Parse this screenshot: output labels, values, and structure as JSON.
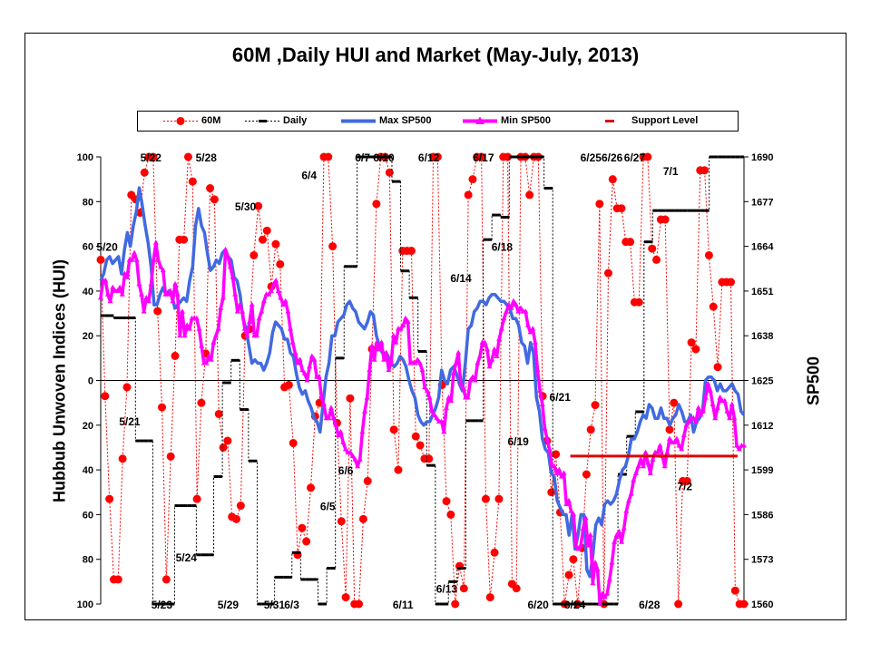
{
  "chart_data": {
    "type": "line",
    "title": "60M ,Daily HUI and Market (May-July, 2013)",
    "ylabel_left": "Hubbub Unwoven Indices (HUI)",
    "ylabel_right": "SP500",
    "y_left_ticks": [
      "100",
      "80",
      "60",
      "40",
      "20",
      "0",
      "20",
      "40",
      "60",
      "80",
      "100"
    ],
    "y_left_range": [
      -100,
      100
    ],
    "y_right_ticks": [
      1690,
      1677,
      1664,
      1651,
      1638,
      1625,
      1612,
      1599,
      1586,
      1573,
      1560
    ],
    "y_right_range": [
      1560,
      1690
    ],
    "legend_position": "top",
    "legend": [
      "60M",
      "Daily",
      "Max SP500",
      "Min SP500",
      "Support Level"
    ],
    "colors": {
      "m60": "#ff0000",
      "daily": "#000000",
      "max": "#4169e1",
      "min": "#ff00ff",
      "support": "#dd0000"
    },
    "series_60m": [
      54,
      -7,
      -53,
      -89,
      -89,
      -35,
      -3,
      83,
      81,
      75,
      93,
      100,
      100,
      31,
      -12,
      -89,
      -34,
      11,
      63,
      63,
      100,
      89,
      -53,
      -10,
      12,
      86,
      81,
      -15,
      -30,
      -27,
      -61,
      -62,
      -56,
      20,
      23,
      56,
      78,
      63,
      67,
      42,
      61,
      52,
      -3,
      -2,
      -28,
      -78,
      -66,
      -72,
      -48,
      -16,
      -10,
      100,
      100,
      60,
      -19,
      -63,
      -97,
      -8,
      -100,
      -100,
      -62,
      -45,
      14,
      79,
      100,
      100,
      93,
      -22,
      -40,
      58,
      58,
      58,
      -25,
      -29,
      -35,
      -35,
      100,
      100,
      -2,
      -54,
      -60,
      -100,
      -83,
      -93,
      83,
      90,
      100,
      100,
      -53,
      -97,
      -77,
      -53,
      100,
      100,
      -91,
      -93,
      100,
      100,
      83,
      100,
      100,
      -7,
      -27,
      -50,
      -33,
      -59,
      -100,
      -87,
      -80,
      -100,
      -75,
      -42,
      -22,
      -11,
      79,
      -100,
      48,
      90,
      77,
      77,
      62,
      62,
      35,
      35,
      100,
      100,
      59,
      54,
      72,
      72,
      -22,
      -10,
      -100,
      -45,
      -45,
      17,
      14,
      94,
      94,
      56,
      33,
      6,
      44,
      44,
      44,
      -94,
      -100,
      -100
    ],
    "series_daily": [
      29,
      29,
      29,
      28,
      28,
      28,
      28,
      28,
      -27,
      -27,
      -27,
      -27,
      -100,
      -100,
      -100,
      -100,
      -100,
      -56,
      -56,
      -56,
      -56,
      -56,
      -78,
      -78,
      -78,
      -78,
      -43,
      -43,
      -1,
      -1,
      9,
      9,
      -13,
      -13,
      -36,
      -36,
      -100,
      -100,
      -100,
      -100,
      -88,
      -88,
      -88,
      -88,
      -77,
      -77,
      -89,
      -89,
      -89,
      -89,
      -100,
      -100,
      -84,
      -84,
      10,
      10,
      51,
      51,
      51,
      100,
      100,
      100,
      100,
      100,
      100,
      100,
      100,
      89,
      89,
      49,
      49,
      37,
      37,
      13,
      13,
      -38,
      -38,
      -100,
      -100,
      -100,
      -90,
      -90,
      -84,
      -84,
      -18,
      -18,
      -18,
      -18,
      63,
      63,
      74,
      74,
      73,
      73,
      100,
      100,
      100,
      100,
      100,
      100,
      100,
      100,
      86,
      86,
      -100,
      -100,
      -100,
      -100,
      -100,
      -100,
      -100,
      -100,
      -100,
      -100,
      -100,
      -100,
      -100,
      -100,
      -100,
      -42,
      -42,
      -25,
      -25,
      -14,
      -14,
      62,
      62,
      76,
      76,
      76,
      76,
      76,
      76,
      76,
      76,
      76,
      76,
      76,
      76,
      76,
      100,
      100,
      100,
      100,
      100,
      100,
      100,
      100,
      100
    ],
    "series_max_sp500": [
      1654,
      1656,
      1660,
      1661,
      1659,
      1660,
      1661,
      1656,
      1663,
      1668,
      1664,
      1670,
      1674,
      1681,
      1676,
      1670,
      1665,
      1658,
      1647,
      1647,
      1650,
      1652,
      1650,
      1651,
      1650,
      1646,
      1647,
      1648,
      1649,
      1648,
      1654,
      1658,
      1670,
      1675,
      1670,
      1668,
      1662,
      1657,
      1658,
      1660,
      1659,
      1662,
      1663,
      1661,
      1660,
      1655,
      1654,
      1650,
      1643,
      1640,
      1635,
      1630,
      1631,
      1630,
      1630,
      1628,
      1630,
      1633,
      1639,
      1642,
      1641,
      1640,
      1637,
      1637,
      1633,
      1632,
      1627,
      1623,
      1621,
      1622,
      1619,
      1617,
      1614,
      1613,
      1610,
      1618,
      1626,
      1630,
      1638,
      1638,
      1642,
      1643,
      1644,
      1647,
      1648,
      1646,
      1645,
      1642,
      1641,
      1640,
      1642,
      1645,
      1644,
      1638,
      1635,
      1633,
      1633,
      1632,
      1630,
      1629,
      1630,
      1632,
      1631,
      1629,
      1625,
      1622,
      1620,
      1615,
      1613,
      1612,
      1613,
      1613,
      1615,
      1617,
      1620,
      1628,
      1625,
      1624,
      1628,
      1629,
      1627,
      1624,
      1622,
      1630,
      1640,
      1641,
      1645,
      1646,
      1648,
      1648,
      1647,
      1649,
      1650,
      1650,
      1649,
      1648,
      1648,
      1647,
      1646,
      1643,
      1643,
      1641,
      1636,
      1635,
      1630,
      1636,
      1633,
      1620,
      1616,
      1608,
      1605,
      1604,
      1598,
      1597,
      1590,
      1588,
      1586,
      1586,
      1580,
      1586,
      1576,
      1580,
      1586,
      1586,
      1570,
      1568,
      1574,
      1583,
      1585,
      1583,
      1589,
      1590,
      1589,
      1590,
      1592,
      1596,
      1599,
      1600,
      1603,
      1608,
      1608,
      1610,
      1613,
      1615,
      1614,
      1618,
      1617,
      1614,
      1614,
      1617,
      1614,
      1614,
      1612,
      1614,
      1615,
      1618,
      1616,
      1613,
      1613,
      1615,
      1610,
      1613,
      1614,
      1616,
      1625,
      1626,
      1626,
      1625,
      1622,
      1624,
      1622,
      1622,
      1623,
      1624,
      1622,
      1621,
      1616,
      1615
    ],
    "series_min_sp500": [
      1649,
      1654,
      1654,
      1650,
      1648,
      1652,
      1651,
      1651,
      1652,
      1650,
      1656,
      1655,
      1660,
      1660,
      1662,
      1660,
      1653,
      1650,
      1645,
      1649,
      1648,
      1653,
      1660,
      1665,
      1660,
      1658,
      1657,
      1650,
      1650,
      1651,
      1648,
      1653,
      1650,
      1638,
      1645,
      1638,
      1641,
      1640,
      1643,
      1643,
      1643,
      1640,
      1635,
      1630,
      1630,
      1632,
      1631,
      1636,
      1638,
      1640,
      1646,
      1649,
      1663,
      1661,
      1658,
      1655,
      1650,
      1645,
      1647,
      1645,
      1640,
      1638,
      1642,
      1647,
      1638,
      1638,
      1643,
      1645,
      1648,
      1650,
      1650,
      1651,
      1653,
      1654,
      1651,
      1649,
      1647,
      1648,
      1645,
      1640,
      1636,
      1633,
      1630,
      1631,
      1628,
      1627,
      1625,
      1629,
      1632,
      1631,
      1626,
      1626,
      1620,
      1618,
      1614,
      1614,
      1617,
      1614,
      1612,
      1609,
      1610,
      1607,
      1605,
      1604,
      1604,
      1603,
      1602,
      1600,
      1602,
      1610,
      1616,
      1620,
      1628,
      1635,
      1631,
      1636,
      1634,
      1636,
      1631,
      1633,
      1628,
      1630,
      1638,
      1636,
      1640,
      1640,
      1641,
      1643,
      1642,
      1630,
      1630,
      1630,
      1631,
      1630,
      1628,
      1623,
      1622,
      1620,
      1616,
      1615,
      1614,
      1613,
      1613,
      1610,
      1617,
      1620,
      1619,
      1627,
      1630,
      1633,
      1624,
      1623,
      1620,
      1620,
      1625,
      1626,
      1625,
      1630,
      1632,
      1636,
      1636,
      1634,
      1629,
      1631,
      1634,
      1632,
      1637,
      1640,
      1643,
      1645,
      1647,
      1646,
      1648,
      1647,
      1645,
      1646,
      1645,
      1645,
      1641,
      1639,
      1640,
      1636,
      1628,
      1622,
      1618,
      1611,
      1608,
      1605,
      1600,
      1600,
      1598,
      1599,
      1597,
      1598,
      1589,
      1590,
      1587,
      1586,
      1577,
      1576,
      1577,
      1582,
      1585,
      1577,
      1580,
      1566,
      1572,
      1570,
      1560,
      1563,
      1562,
      1563,
      1567,
      1572,
      1578,
      1580,
      1581,
      1578,
      1582,
      1587,
      1590,
      1592,
      1596,
      1598,
      1600,
      1602,
      1600,
      1604,
      1601,
      1598,
      1602,
      1604,
      1604,
      1606,
      1603,
      1600,
      1604,
      1608,
      1607,
      1607,
      1608,
      1606,
      1605,
      1609,
      1612,
      1613,
      1614,
      1614,
      1613,
      1617,
      1615,
      1616,
      1620,
      1624,
      1622,
      1618,
      1614,
      1617,
      1620,
      1619,
      1619,
      1616,
      1614,
      1618,
      1614,
      1606,
      1605,
      1606,
      1606
    ],
    "support_level": {
      "value": 1603,
      "start_frac": 0.73,
      "end_frac": 0.99
    },
    "date_annotations": [
      {
        "text": "5/20",
        "x": 0.01,
        "y": 60
      },
      {
        "text": "5/22",
        "x": 0.078,
        "y": 100
      },
      {
        "text": "5/21",
        "x": 0.045,
        "y": -18
      },
      {
        "text": "5/23",
        "x": 0.095,
        "y": -100
      },
      {
        "text": "5/28",
        "x": 0.164,
        "y": 100
      },
      {
        "text": "5/24",
        "x": 0.133,
        "y": -79
      },
      {
        "text": "5/30",
        "x": 0.225,
        "y": 78
      },
      {
        "text": "5/29",
        "x": 0.198,
        "y": -100
      },
      {
        "text": "5/31",
        "x": 0.27,
        "y": -100
      },
      {
        "text": "6/3",
        "x": 0.297,
        "y": -100
      },
      {
        "text": "6/4",
        "x": 0.324,
        "y": 92
      },
      {
        "text": "6/5",
        "x": 0.353,
        "y": -56
      },
      {
        "text": "6/6",
        "x": 0.381,
        "y": -40
      },
      {
        "text": "6/7",
        "x": 0.407,
        "y": 100
      },
      {
        "text": "6/10",
        "x": 0.44,
        "y": 100
      },
      {
        "text": "6/11",
        "x": 0.47,
        "y": -100
      },
      {
        "text": "6/12",
        "x": 0.51,
        "y": 100
      },
      {
        "text": "6/14",
        "x": 0.56,
        "y": 46
      },
      {
        "text": "6/13",
        "x": 0.538,
        "y": -93
      },
      {
        "text": "6/17",
        "x": 0.595,
        "y": 100
      },
      {
        "text": "6/18",
        "x": 0.624,
        "y": 60
      },
      {
        "text": "6/19",
        "x": 0.649,
        "y": -27
      },
      {
        "text": "6/21",
        "x": 0.714,
        "y": -7
      },
      {
        "text": "6/20",
        "x": 0.68,
        "y": -100
      },
      {
        "text": "6/24",
        "x": 0.737,
        "y": -100
      },
      {
        "text": "6/25",
        "x": 0.762,
        "y": 100
      },
      {
        "text": "6/26",
        "x": 0.795,
        "y": 100
      },
      {
        "text": "6/27",
        "x": 0.83,
        "y": 100
      },
      {
        "text": "6/28",
        "x": 0.853,
        "y": -100
      },
      {
        "text": "7/1",
        "x": 0.886,
        "y": 94
      },
      {
        "text": "7/2",
        "x": 0.908,
        "y": -47
      }
    ]
  }
}
